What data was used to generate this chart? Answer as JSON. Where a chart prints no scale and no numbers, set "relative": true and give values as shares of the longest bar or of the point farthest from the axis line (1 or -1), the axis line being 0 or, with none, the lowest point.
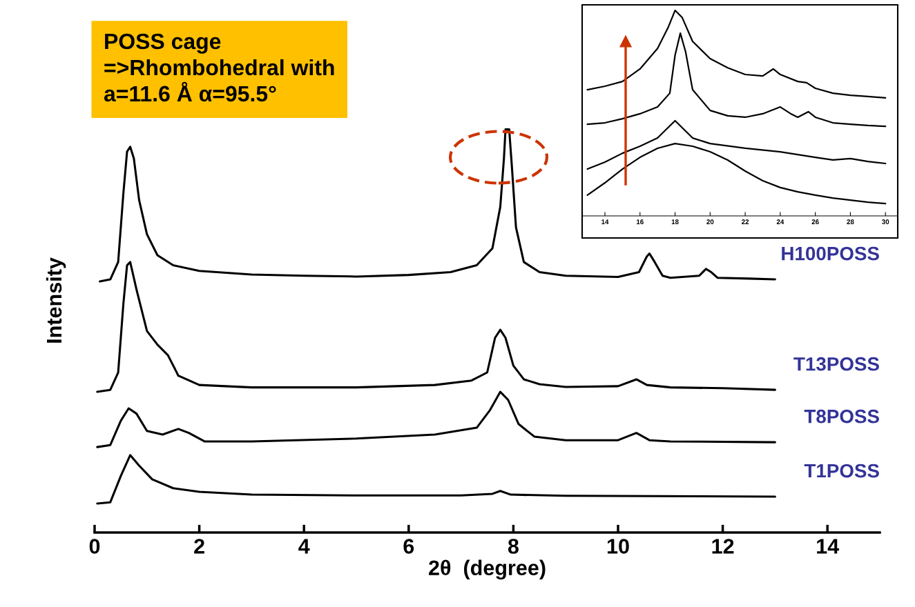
{
  "chart_data": [
    {
      "type": "line",
      "relative": true,
      "xlabel": "2θ  (degree)",
      "ylabel": "Intensity",
      "xlim": [
        0,
        15
      ],
      "xticks": [
        0,
        2,
        4,
        6,
        8,
        10,
        12,
        14
      ],
      "grid": false,
      "annotations": [
        "POSS cage\n=>Rhombohedral with\na=11.6 Å α=95.5°"
      ],
      "series": [
        {
          "name": "H100POSS",
          "color": "#000000",
          "x": [
            0.1,
            0.3,
            0.45,
            0.55,
            0.62,
            0.68,
            0.75,
            0.85,
            1.0,
            1.2,
            1.5,
            2.0,
            3,
            4,
            5,
            6,
            6.8,
            7.3,
            7.6,
            7.75,
            7.82,
            7.85,
            7.92,
            7.97,
            8.05,
            8.2,
            8.5,
            9,
            10,
            10.4,
            10.55,
            10.6,
            10.7,
            10.85,
            11,
            11.55,
            11.68,
            11.78,
            11.9,
            12.5,
            13
          ],
          "values": [
            0.623,
            0.628,
            0.671,
            0.842,
            0.945,
            0.957,
            0.928,
            0.825,
            0.74,
            0.688,
            0.663,
            0.649,
            0.64,
            0.637,
            0.635,
            0.639,
            0.646,
            0.663,
            0.705,
            0.808,
            0.928,
            1.0,
            1.0,
            0.911,
            0.757,
            0.671,
            0.646,
            0.637,
            0.634,
            0.646,
            0.685,
            0.692,
            0.671,
            0.637,
            0.632,
            0.637,
            0.654,
            0.646,
            0.632,
            0.63,
            0.628
          ]
        },
        {
          "name": "T13POSS",
          "color": "#000000",
          "x": [
            0.05,
            0.3,
            0.45,
            0.55,
            0.62,
            0.68,
            0.8,
            1.0,
            1.2,
            1.4,
            1.6,
            2.0,
            3,
            5,
            6.5,
            7.2,
            7.5,
            7.65,
            7.75,
            7.85,
            8.0,
            8.2,
            8.5,
            9,
            10,
            10.35,
            10.55,
            11,
            12,
            13
          ],
          "values": [
            0.349,
            0.354,
            0.397,
            0.568,
            0.663,
            0.671,
            0.603,
            0.5,
            0.466,
            0.44,
            0.389,
            0.366,
            0.36,
            0.36,
            0.366,
            0.377,
            0.397,
            0.483,
            0.503,
            0.483,
            0.414,
            0.38,
            0.368,
            0.361,
            0.363,
            0.38,
            0.366,
            0.36,
            0.358,
            0.354
          ]
        },
        {
          "name": "T8POSS",
          "color": "#000000",
          "x": [
            0.05,
            0.3,
            0.5,
            0.65,
            0.8,
            1.0,
            1.3,
            1.6,
            1.8,
            2.1,
            3,
            5,
            6.5,
            7.3,
            7.55,
            7.75,
            7.9,
            8.1,
            8.4,
            9,
            10,
            10.35,
            10.6,
            11,
            13
          ],
          "values": [
            0.212,
            0.217,
            0.277,
            0.308,
            0.295,
            0.252,
            0.243,
            0.257,
            0.247,
            0.226,
            0.226,
            0.233,
            0.243,
            0.26,
            0.303,
            0.349,
            0.329,
            0.269,
            0.238,
            0.229,
            0.229,
            0.247,
            0.229,
            0.226,
            0.224
          ]
        },
        {
          "name": "T1POSS",
          "color": "#000000",
          "x": [
            0.05,
            0.3,
            0.5,
            0.68,
            0.85,
            1.1,
            1.5,
            2,
            3,
            5,
            7,
            7.6,
            7.75,
            7.95,
            9,
            13
          ],
          "values": [
            0.072,
            0.075,
            0.14,
            0.192,
            0.166,
            0.132,
            0.11,
            0.101,
            0.094,
            0.092,
            0.092,
            0.096,
            0.103,
            0.094,
            0.091,
            0.089
          ]
        }
      ]
    },
    {
      "type": "line",
      "relative": true,
      "xlim": [
        12.7,
        30.7
      ],
      "xticks": [
        14,
        16,
        18,
        20,
        22,
        24,
        26,
        28,
        30
      ],
      "grid": false,
      "series": [
        {
          "color": "#000000",
          "x": [
            13,
            14,
            15,
            16,
            17,
            17.6,
            18,
            18.4,
            19,
            20,
            21,
            22,
            23,
            23.6,
            24,
            25,
            25.5,
            26,
            27,
            28,
            29,
            30
          ],
          "values": [
            0.614,
            0.631,
            0.654,
            0.715,
            0.815,
            0.916,
            1.0,
            0.966,
            0.849,
            0.765,
            0.721,
            0.688,
            0.681,
            0.715,
            0.688,
            0.654,
            0.648,
            0.621,
            0.597,
            0.587,
            0.581,
            0.574
          ]
        },
        {
          "color": "#000000",
          "x": [
            13,
            14,
            15,
            16,
            17,
            17.7,
            18.0,
            18.3,
            18.6,
            19,
            20,
            21,
            22,
            23,
            24,
            24.6,
            25,
            25.6,
            26,
            27,
            28,
            29,
            30
          ],
          "values": [
            0.446,
            0.453,
            0.473,
            0.497,
            0.53,
            0.597,
            0.782,
            0.889,
            0.799,
            0.614,
            0.513,
            0.487,
            0.48,
            0.497,
            0.53,
            0.497,
            0.48,
            0.507,
            0.48,
            0.453,
            0.446,
            0.44,
            0.436
          ]
        },
        {
          "color": "#000000",
          "x": [
            13,
            14,
            15,
            16,
            17,
            18,
            18.6,
            19,
            20,
            22,
            24,
            26,
            27,
            28,
            29,
            30
          ],
          "values": [
            0.228,
            0.262,
            0.305,
            0.339,
            0.379,
            0.463,
            0.413,
            0.379,
            0.352,
            0.329,
            0.312,
            0.285,
            0.272,
            0.279,
            0.265,
            0.255
          ]
        },
        {
          "color": "#000000",
          "x": [
            13,
            14,
            15,
            16,
            17,
            18,
            19,
            20,
            21,
            22,
            23,
            24,
            25,
            26,
            27,
            28,
            29,
            30
          ],
          "values": [
            0.101,
            0.161,
            0.228,
            0.285,
            0.329,
            0.352,
            0.339,
            0.312,
            0.272,
            0.218,
            0.171,
            0.138,
            0.117,
            0.101,
            0.087,
            0.077,
            0.067,
            0.06
          ]
        }
      ]
    }
  ]
}
